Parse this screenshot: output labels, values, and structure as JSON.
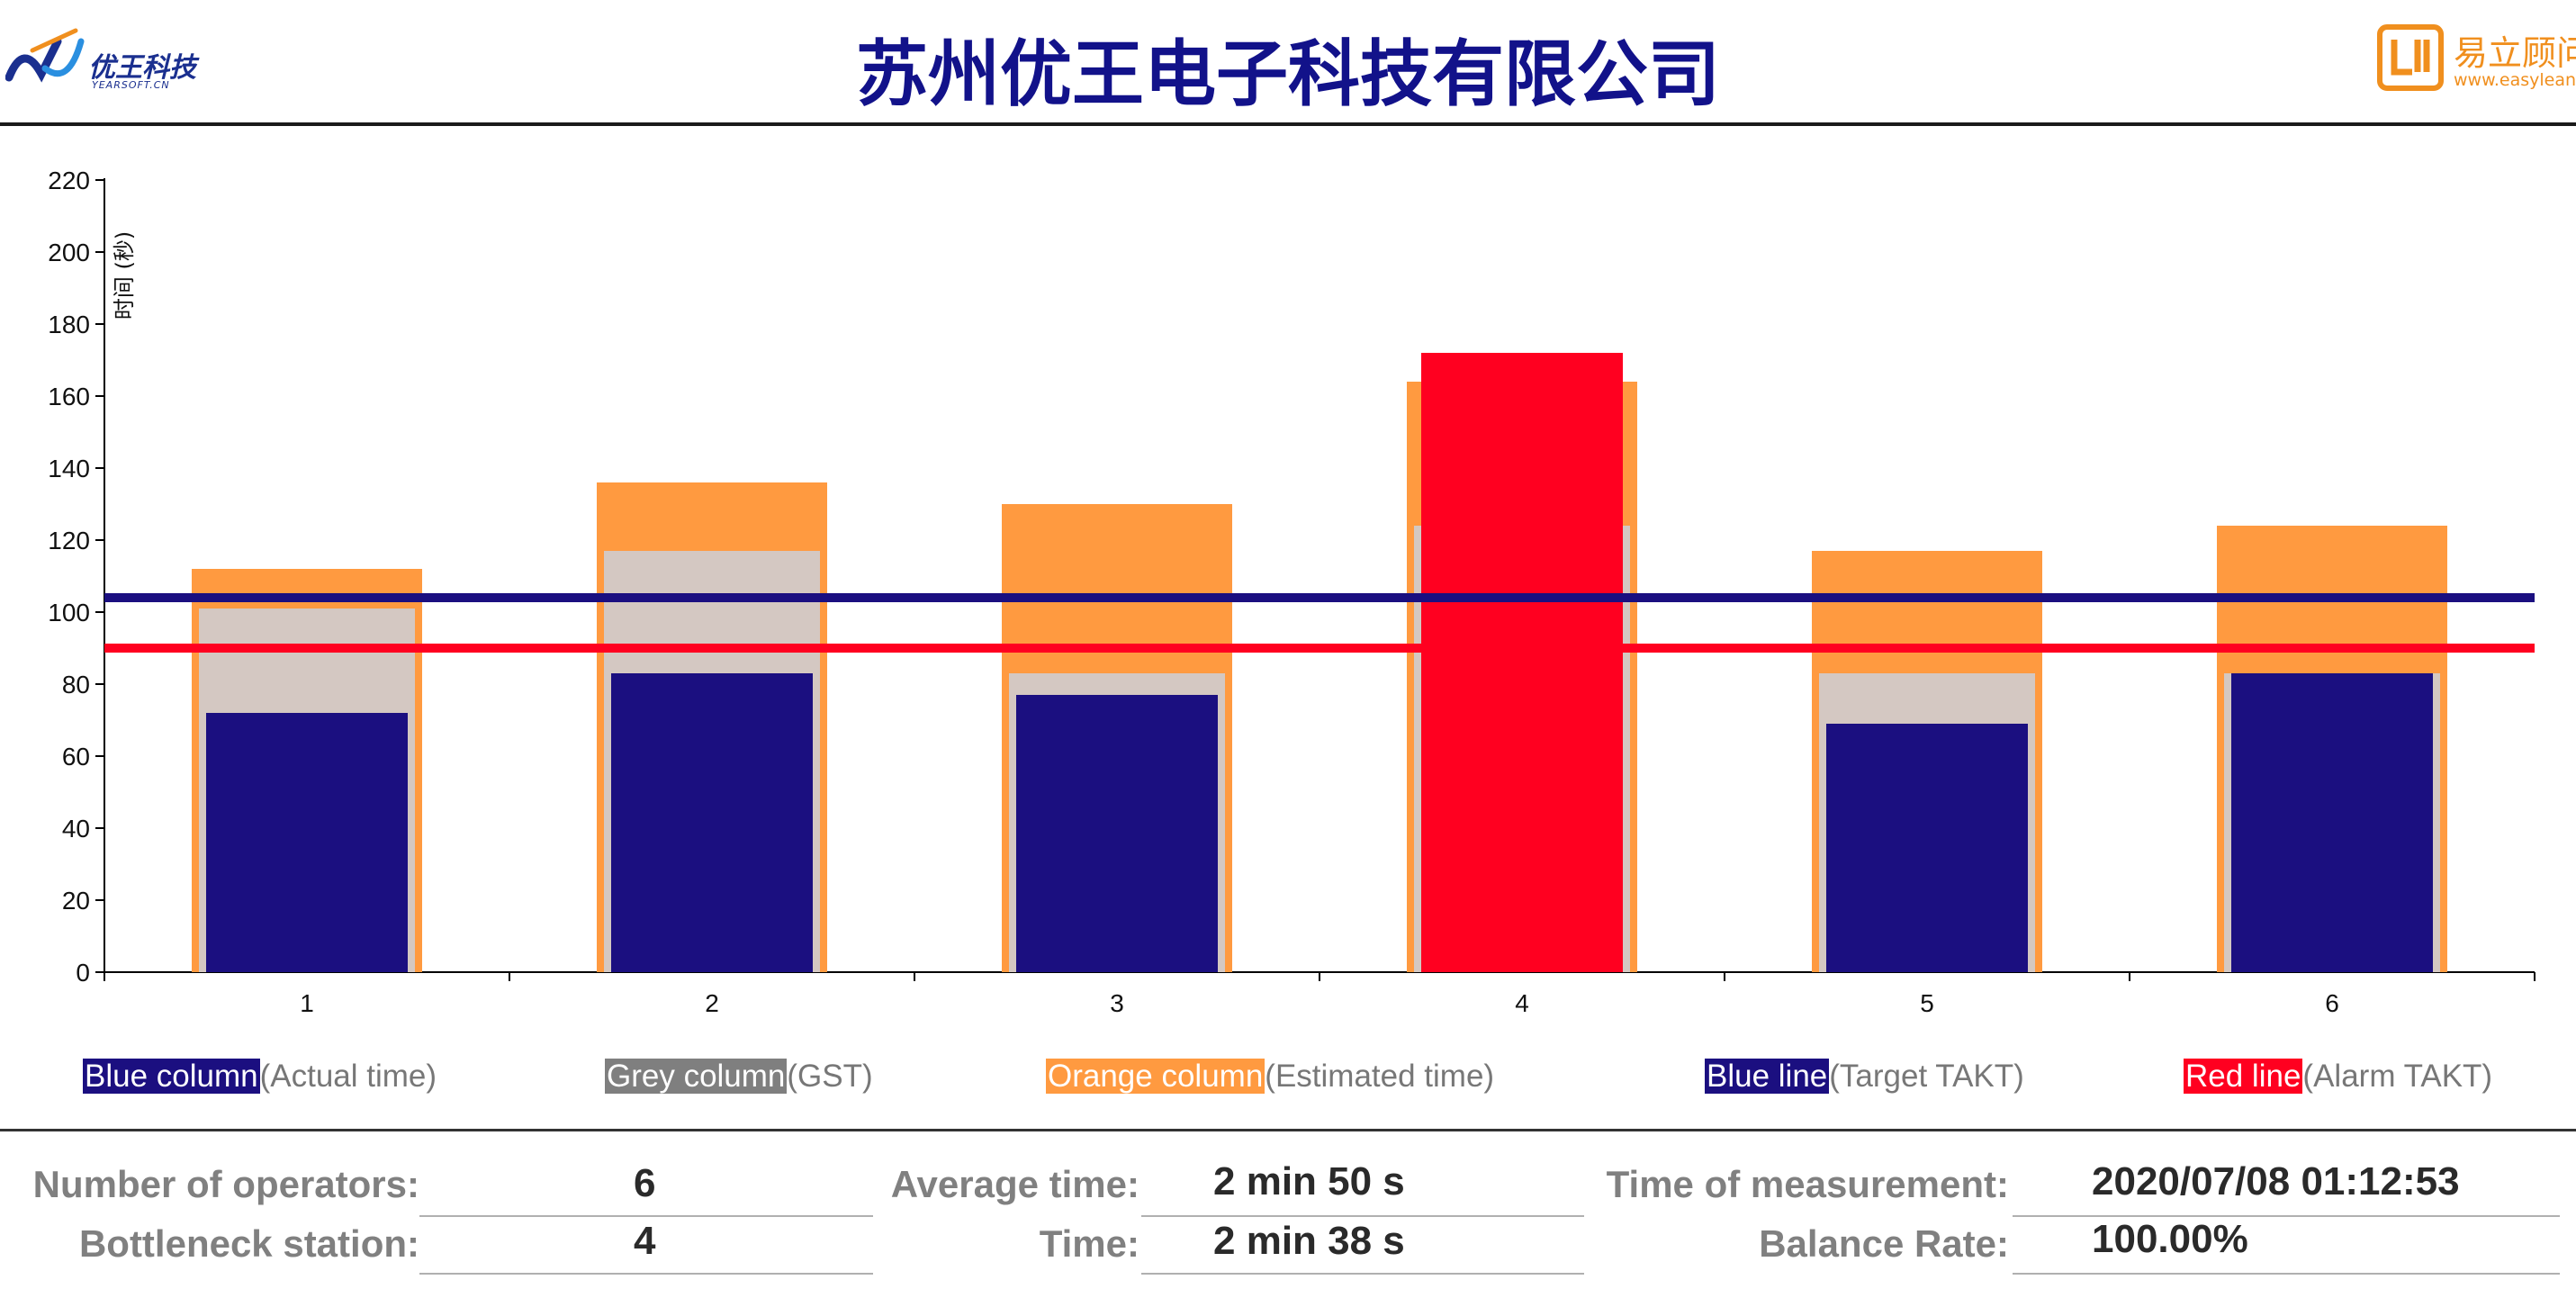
{
  "header": {
    "title": "苏州优王电子科技有限公司",
    "left_logo": {
      "name": "优王科技",
      "sub": "YEARSOFT.CN"
    },
    "right_logo": {
      "name": "易立顾问",
      "url": "www.easylean.cn",
      "color": "#f08f1e"
    }
  },
  "chart_data": {
    "type": "bar",
    "ylabel": "时间 (秒)",
    "ylim": [
      0,
      220
    ],
    "yticks": [
      0,
      20,
      40,
      60,
      80,
      100,
      120,
      140,
      160,
      180,
      200,
      220
    ],
    "categories": [
      "1",
      "2",
      "3",
      "4",
      "5",
      "6"
    ],
    "series": [
      {
        "name": "Estimated time",
        "color": "#ff9a40",
        "values": [
          112,
          136,
          130,
          164,
          117,
          124
        ]
      },
      {
        "name": "GST",
        "color": "#d4c8c2",
        "values": [
          101,
          117,
          83,
          124,
          83,
          83
        ]
      },
      {
        "name": "Actual time",
        "color": "#1b0f80",
        "values": [
          72,
          83,
          77,
          172,
          69,
          83
        ],
        "highlight": {
          "index": 3,
          "color": "#ff0020"
        }
      }
    ],
    "lines": [
      {
        "name": "Target TAKT",
        "color": "#1b0f80",
        "value": 104
      },
      {
        "name": "Alarm TAKT",
        "color": "#ff0020",
        "value": 90
      }
    ],
    "grid": false
  },
  "legend": [
    {
      "swatch": "Blue column",
      "text": "(Actual time)",
      "color": "#1b0f80"
    },
    {
      "swatch": "Grey column",
      "text": "(GST)",
      "color": "#7f7f7f"
    },
    {
      "swatch": "Orange column",
      "text": "(Estimated time)",
      "color": "#ff9a40"
    },
    {
      "swatch": "Blue line",
      "text": "(Target TAKT)",
      "color": "#1b0f80"
    },
    {
      "swatch": "Red line",
      "text": "(Alarm TAKT)",
      "color": "#ff0020"
    }
  ],
  "stats": {
    "operators_label": "Number of operators:",
    "operators_value": "6",
    "bottleneck_label": "Bottleneck station:",
    "bottleneck_value": "4",
    "average_label": "Average time:",
    "average_value": "2 min 50 s",
    "time_label": "Time:",
    "time_value": "2 min 38 s",
    "measurement_label": "Time of measurement:",
    "measurement_value": "2020/07/08 01:12:53",
    "balance_label": "Balance Rate:",
    "balance_value": "100.00%"
  }
}
